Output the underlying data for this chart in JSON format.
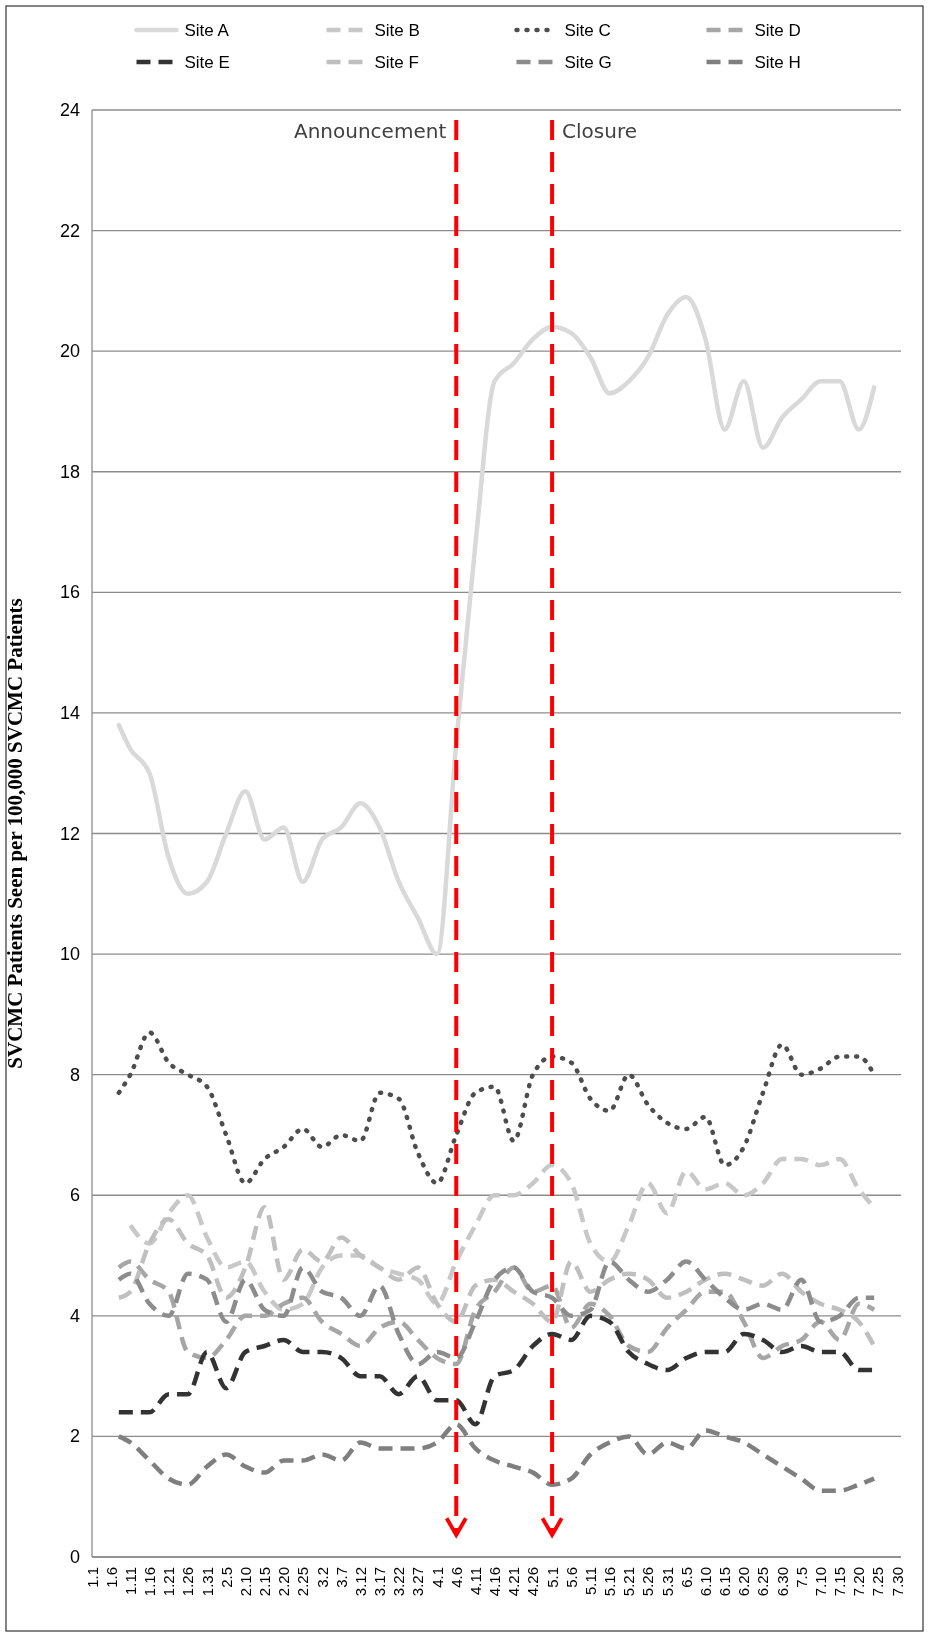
{
  "chart_data": {
    "type": "line",
    "ylabel": "SVCMC Patients Seen per 100,000 SVCMC Patients",
    "x": [
      "--01-08",
      "--01-11",
      "--01-16",
      "--01-21",
      "--01-26",
      "--01-31",
      "--02-05",
      "--02-10",
      "--02-15",
      "--02-20",
      "--02-25",
      "--03-02",
      "--03-07",
      "--03-12",
      "--03-17",
      "--03-22",
      "--03-27",
      "--04-01",
      "--04-06",
      "--04-11",
      "--04-16",
      "--04-21",
      "--04-26",
      "--05-01",
      "--05-06",
      "--05-11",
      "--05-16",
      "--05-21",
      "--05-26",
      "--05-31",
      "--06-05",
      "--06-10",
      "--06-15",
      "--06-20",
      "--06-25",
      "--06-30",
      "--07-05",
      "--07-10",
      "--07-15",
      "--07-20",
      "--07-24"
    ],
    "xlim": [
      "--01-01",
      "--07-31"
    ],
    "xticks": [
      {
        "value": "--01-01",
        "label": "1.1"
      },
      {
        "value": "--01-06",
        "label": "1.6"
      },
      {
        "value": "--01-11",
        "label": "1.11"
      },
      {
        "value": "--01-16",
        "label": "1.16"
      },
      {
        "value": "--01-21",
        "label": "1.21"
      },
      {
        "value": "--01-26",
        "label": "1.26"
      },
      {
        "value": "--01-31",
        "label": "1.31"
      },
      {
        "value": "--02-05",
        "label": "2.5"
      },
      {
        "value": "--02-10",
        "label": "2.10"
      },
      {
        "value": "--02-15",
        "label": "2.15"
      },
      {
        "value": "--02-20",
        "label": "2.20"
      },
      {
        "value": "--02-25",
        "label": "2.25"
      },
      {
        "value": "--03-02",
        "label": "3.2"
      },
      {
        "value": "--03-07",
        "label": "3.7"
      },
      {
        "value": "--03-12",
        "label": "3.12"
      },
      {
        "value": "--03-17",
        "label": "3.17"
      },
      {
        "value": "--03-22",
        "label": "3.22"
      },
      {
        "value": "--03-27",
        "label": "3.27"
      },
      {
        "value": "--04-01",
        "label": "4.1"
      },
      {
        "value": "--04-06",
        "label": "4.6"
      },
      {
        "value": "--04-11",
        "label": "4.11"
      },
      {
        "value": "--04-16",
        "label": "4.16"
      },
      {
        "value": "--04-21",
        "label": "4.21"
      },
      {
        "value": "--04-26",
        "label": "4.26"
      },
      {
        "value": "--05-01",
        "label": "5.1"
      },
      {
        "value": "--05-06",
        "label": "5.6"
      },
      {
        "value": "--05-11",
        "label": "5.11"
      },
      {
        "value": "--05-16",
        "label": "5.16"
      },
      {
        "value": "--05-21",
        "label": "5.21"
      },
      {
        "value": "--05-26",
        "label": "5.26"
      },
      {
        "value": "--05-31",
        "label": "5.31"
      },
      {
        "value": "--06-05",
        "label": "6.5"
      },
      {
        "value": "--06-10",
        "label": "6.10"
      },
      {
        "value": "--06-15",
        "label": "6.15"
      },
      {
        "value": "--06-20",
        "label": "6.20"
      },
      {
        "value": "--06-25",
        "label": "6.25"
      },
      {
        "value": "--06-30",
        "label": "6.30"
      },
      {
        "value": "--07-05",
        "label": "7.5"
      },
      {
        "value": "--07-10",
        "label": "7.10"
      },
      {
        "value": "--07-15",
        "label": "7.15"
      },
      {
        "value": "--07-20",
        "label": "7.20"
      },
      {
        "value": "--07-25",
        "label": "7.25"
      },
      {
        "value": "--07-30",
        "label": "7.30"
      }
    ],
    "ylim": [
      0,
      24
    ],
    "yticks": [
      0,
      2,
      4,
      6,
      8,
      10,
      12,
      14,
      16,
      18,
      20,
      22,
      24
    ],
    "grid": "y",
    "legend": "top",
    "series": [
      {
        "name": "Site A",
        "color": "#d9d9d9",
        "line_style": "solid",
        "values": [
          13.8,
          13.4,
          13.0,
          11.6,
          11.0,
          11.2,
          12.0,
          12.7,
          11.9,
          12.1,
          11.2,
          11.9,
          12.1,
          12.5,
          12.1,
          11.2,
          10.6,
          10.0,
          13.5,
          16.8,
          19.5,
          19.8,
          20.2,
          20.4,
          20.3,
          19.9,
          19.3,
          19.5,
          19.9,
          20.6,
          20.9,
          20.2,
          18.7,
          19.5,
          18.4,
          18.9,
          19.2,
          19.5,
          19.5,
          18.7,
          19.4
        ]
      },
      {
        "name": "Site B",
        "color": "#c8c8c8",
        "line_style": "dashed",
        "values": [
          null,
          5.5,
          5.2,
          5.7,
          6.0,
          5.3,
          4.8,
          4.9,
          4.4,
          4.1,
          4.2,
          4.8,
          5.0,
          5.0,
          4.8,
          4.7,
          4.6,
          4.2,
          4.9,
          5.5,
          6.0,
          6.0,
          6.2,
          6.5,
          6.2,
          5.2,
          4.9,
          5.5,
          6.2,
          5.7,
          6.4,
          6.1,
          6.2,
          6.0,
          6.2,
          6.6,
          6.6,
          6.5,
          6.6,
          6.1,
          5.8
        ]
      },
      {
        "name": "Site C",
        "color": "#4d4d4d",
        "line_style": "dotted",
        "values": [
          7.7,
          8.0,
          8.7,
          8.2,
          8.0,
          7.8,
          7.0,
          6.2,
          6.6,
          6.8,
          7.1,
          6.8,
          7.0,
          6.9,
          7.7,
          7.6,
          6.7,
          6.2,
          7.0,
          7.7,
          7.8,
          6.9,
          8.0,
          8.3,
          8.2,
          7.6,
          7.4,
          8.0,
          7.5,
          7.2,
          7.1,
          7.3,
          6.5,
          6.8,
          7.7,
          8.5,
          8.0,
          8.1,
          8.3,
          8.3,
          8.0
        ]
      },
      {
        "name": "Site D",
        "color": "#a6a6a6",
        "line_style": "dashed",
        "values": [
          4.8,
          4.9,
          4.6,
          4.4,
          3.4,
          3.3,
          3.6,
          4.0,
          4.0,
          4.2,
          4.3,
          3.9,
          3.7,
          3.5,
          3.8,
          3.9,
          3.6,
          3.3,
          3.2,
          4.1,
          4.4,
          4.8,
          4.4,
          4.5,
          3.8,
          4.2,
          4.0,
          3.5,
          3.4,
          3.8,
          4.1,
          4.4,
          4.4,
          3.9,
          3.3,
          3.5,
          3.6,
          3.9,
          3.6,
          4.2,
          4.1
        ]
      },
      {
        "name": "Site E",
        "color": "#333333",
        "line_style": "dashed",
        "values": [
          2.4,
          2.4,
          2.4,
          2.7,
          2.7,
          3.4,
          2.8,
          3.4,
          3.5,
          3.6,
          3.4,
          3.4,
          3.3,
          3.0,
          3.0,
          2.7,
          3.0,
          2.6,
          2.6,
          2.2,
          3.0,
          3.1,
          3.5,
          3.7,
          3.6,
          4.0,
          3.9,
          3.4,
          3.2,
          3.1,
          3.3,
          3.4,
          3.4,
          3.7,
          3.6,
          3.4,
          3.5,
          3.4,
          3.4,
          3.1,
          3.1
        ]
      },
      {
        "name": "Site F",
        "color": "#bfbfbf",
        "line_style": "dashed",
        "values": [
          4.3,
          4.4,
          5.2,
          5.6,
          5.2,
          5.0,
          4.3,
          4.8,
          5.8,
          4.6,
          5.1,
          4.9,
          5.3,
          5.0,
          4.8,
          4.6,
          4.8,
          4.2,
          3.9,
          4.5,
          4.6,
          4.4,
          4.2,
          3.9,
          4.9,
          4.4,
          4.6,
          4.7,
          4.6,
          4.3,
          4.4,
          4.6,
          4.7,
          4.6,
          4.5,
          4.7,
          4.4,
          4.2,
          4.1,
          3.9,
          3.5
        ]
      },
      {
        "name": "Site G",
        "color": "#8c8c8c",
        "line_style": "dashed",
        "values": [
          4.6,
          4.7,
          4.2,
          4.0,
          4.7,
          4.6,
          3.9,
          4.6,
          4.1,
          4.0,
          4.8,
          4.4,
          4.3,
          4.0,
          4.5,
          3.7,
          3.2,
          3.4,
          3.3,
          3.9,
          4.6,
          4.8,
          4.4,
          4.3,
          4.0,
          4.1,
          4.9,
          4.6,
          4.4,
          4.6,
          4.9,
          4.6,
          4.3,
          4.1,
          4.2,
          4.1,
          4.6,
          3.9,
          4.0,
          4.3,
          4.3
        ]
      },
      {
        "name": "Site H",
        "color": "#7f7f7f",
        "line_style": "dashed",
        "values": [
          2.0,
          1.9,
          1.6,
          1.3,
          1.2,
          1.5,
          1.7,
          1.5,
          1.4,
          1.6,
          1.6,
          1.7,
          1.6,
          1.9,
          1.8,
          1.8,
          1.8,
          1.9,
          2.2,
          1.8,
          1.6,
          1.5,
          1.4,
          1.2,
          1.3,
          1.7,
          1.9,
          2.0,
          1.7,
          1.9,
          1.8,
          2.1,
          2.0,
          1.9,
          1.7,
          1.5,
          1.3,
          1.1,
          1.1,
          1.2,
          1.3
        ]
      }
    ],
    "ref_lines": [
      {
        "axis": "x",
        "value": "--04-06",
        "label": "Announcement",
        "color": "#ff0000",
        "line_style": "dashed"
      },
      {
        "axis": "x",
        "value": "--05-01",
        "label": "Closure",
        "color": "#ff0000",
        "line_style": "dashed"
      }
    ]
  }
}
